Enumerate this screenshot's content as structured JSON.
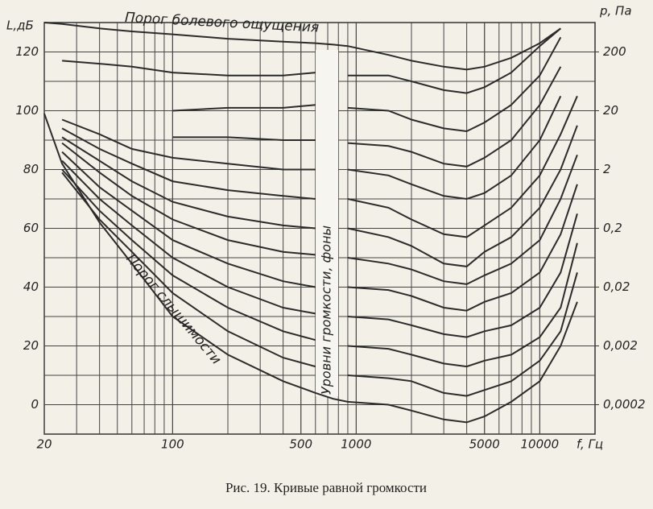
{
  "chart_data": {
    "type": "line",
    "x_label": "f, Гц",
    "y_label": "L,дБ",
    "y2_label": "p, Па",
    "pain_label": "Порог болевого ощущения",
    "threshold_label": "Порог слышимости",
    "band_label": "Уровни громкости, фоны",
    "caption": "Рис. 19. Кривые равной громкости",
    "xscale": "log",
    "y2scale": "log",
    "grid": true,
    "color": "#2b2b2b",
    "xlim": [
      20,
      20000
    ],
    "ylim": [
      -10,
      130
    ],
    "y2lim": [
      6.32e-05,
      632
    ],
    "xticks": [
      20,
      100,
      500,
      1000,
      5000,
      10000
    ],
    "yticks": [
      0,
      20,
      40,
      60,
      80,
      100,
      120
    ],
    "y2ticks": [
      {
        "value": 0.0002,
        "label": "0,0002"
      },
      {
        "value": 0.002,
        "label": "0,002"
      },
      {
        "value": 0.02,
        "label": "0,02"
      },
      {
        "value": 0.2,
        "label": "0,2"
      },
      2,
      20,
      200
    ],
    "x": [
      20,
      25,
      40,
      60,
      100,
      200,
      400,
      600,
      750,
      900,
      1500,
      2000,
      3000,
      4000,
      5000,
      7000,
      10000,
      13000,
      16000
    ],
    "series": [
      {
        "values": [
          99,
          82,
          62,
          48,
          30,
          17,
          8,
          4,
          2,
          1,
          0,
          -2,
          -5,
          -6,
          -4,
          1,
          8,
          20,
          35
        ]
      },
      {
        "values": [
          null,
          79,
          63,
          52,
          38,
          25,
          16,
          13,
          null,
          10,
          9,
          8,
          4,
          3,
          5,
          8,
          15,
          25,
          45
        ]
      },
      {
        "values": [
          null,
          80,
          66,
          56,
          44,
          33,
          25,
          22,
          null,
          20,
          19,
          17,
          14,
          13,
          15,
          17,
          23,
          33,
          55
        ]
      },
      {
        "values": [
          null,
          83,
          70,
          61,
          50,
          40,
          33,
          31,
          null,
          30,
          29,
          27,
          24,
          23,
          25,
          27,
          33,
          45,
          65
        ]
      },
      {
        "values": [
          null,
          86,
          74,
          66,
          56,
          48,
          42,
          40,
          null,
          40,
          39,
          37,
          33,
          32,
          35,
          38,
          45,
          58,
          75
        ]
      },
      {
        "values": [
          null,
          89,
          79,
          71,
          63,
          56,
          52,
          51,
          null,
          50,
          48,
          46,
          42,
          41,
          44,
          48,
          56,
          70,
          85
        ]
      },
      {
        "values": [
          null,
          91,
          83,
          76,
          69,
          64,
          61,
          60,
          null,
          60,
          57,
          54,
          48,
          47,
          52,
          57,
          67,
          80,
          95
        ]
      },
      {
        "values": [
          null,
          94,
          87,
          82,
          76,
          73,
          71,
          70,
          null,
          70,
          67,
          63,
          58,
          57,
          61,
          67,
          78,
          92,
          105
        ]
      },
      {
        "values": [
          null,
          97,
          92,
          87,
          84,
          82,
          80,
          80,
          null,
          80,
          78,
          75,
          71,
          70,
          72,
          78,
          90,
          105,
          null
        ]
      },
      {
        "values": [
          null,
          null,
          null,
          null,
          91,
          91,
          90,
          90,
          null,
          89,
          88,
          86,
          82,
          81,
          84,
          90,
          102,
          115,
          null
        ]
      },
      {
        "values": [
          null,
          null,
          null,
          null,
          100,
          101,
          101,
          102,
          null,
          101,
          100,
          97,
          94,
          93,
          96,
          102,
          112,
          125,
          null
        ]
      },
      {
        "values": [
          null,
          117,
          116,
          115,
          113,
          112,
          112,
          113,
          null,
          112,
          112,
          110,
          107,
          106,
          108,
          113,
          122,
          128,
          null
        ]
      },
      {
        "values": [
          130,
          129.5,
          128,
          127,
          126,
          124.5,
          123.5,
          123,
          122.5,
          122,
          119,
          117,
          115,
          114,
          115,
          118,
          123,
          128,
          null
        ]
      }
    ]
  }
}
